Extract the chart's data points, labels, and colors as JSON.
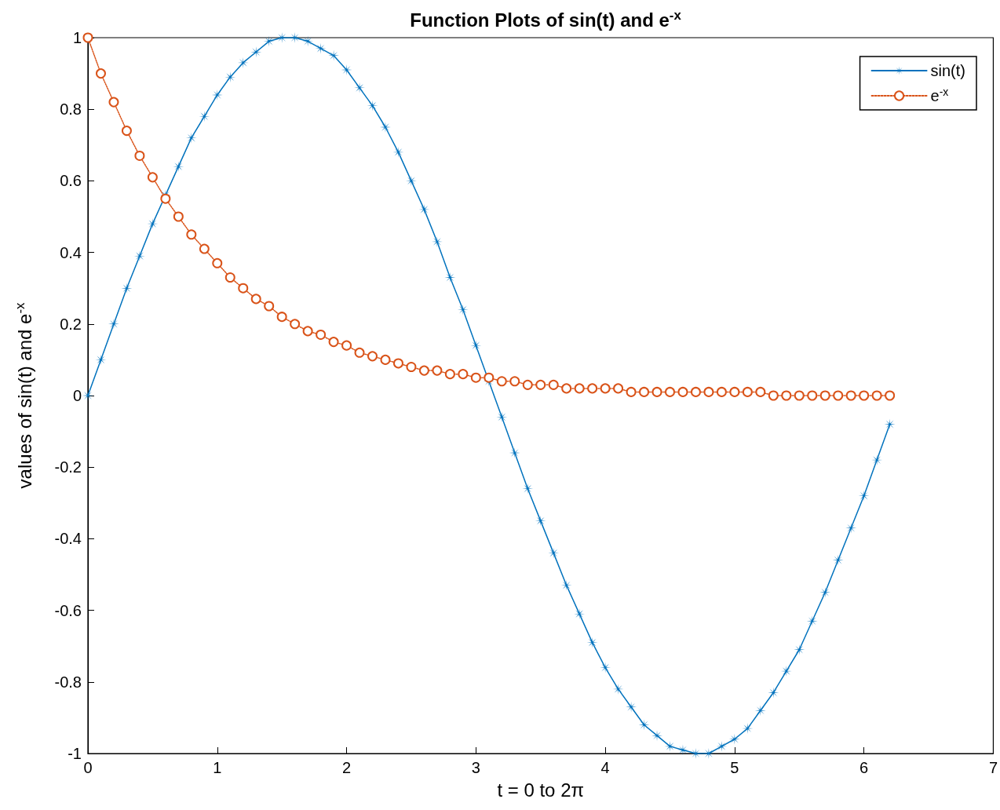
{
  "chart_data": {
    "type": "line",
    "title": "Function Plots of sin(t) and e$^{-x}$",
    "xlabel": "t = 0 to 2π",
    "ylabel": "values of sin(t) and e$^{-x}$",
    "x": [
      0,
      0.1,
      0.2,
      0.3,
      0.4,
      0.5,
      0.6,
      0.7,
      0.8,
      0.9,
      1,
      1.1,
      1.2,
      1.3,
      1.4,
      1.5,
      1.6,
      1.7,
      1.8,
      1.9,
      2,
      2.1,
      2.2,
      2.3,
      2.4,
      2.5,
      2.6,
      2.7,
      2.8,
      2.9,
      3,
      3.1,
      3.2,
      3.3,
      3.4,
      3.5,
      3.6,
      3.7,
      3.8,
      3.9,
      4,
      4.1,
      4.2,
      4.3,
      4.4,
      4.5,
      4.6,
      4.7,
      4.8,
      4.9,
      5,
      5.1,
      5.2,
      5.3,
      5.4,
      5.5,
      5.6,
      5.7,
      5.8,
      5.9,
      6,
      6.1,
      6.2
    ],
    "series": [
      {
        "name": "sin(t)",
        "color": "#0072bd",
        "marker": "star",
        "line_style": "solid",
        "values": [
          0,
          0.1,
          0.2,
          0.3,
          0.39,
          0.48,
          0.56,
          0.64,
          0.72,
          0.78,
          0.84,
          0.89,
          0.93,
          0.96,
          0.99,
          1,
          1,
          0.99,
          0.97,
          0.95,
          0.91,
          0.86,
          0.81,
          0.75,
          0.68,
          0.6,
          0.52,
          0.43,
          0.33,
          0.24,
          0.14,
          0.04,
          -0.06,
          -0.16,
          -0.26,
          -0.35,
          -0.44,
          -0.53,
          -0.61,
          -0.69,
          -0.76,
          -0.82,
          -0.87,
          -0.92,
          -0.95,
          -0.98,
          -0.99,
          -1,
          -1,
          -0.98,
          -0.96,
          -0.93,
          -0.88,
          -0.83,
          -0.77,
          -0.71,
          -0.63,
          -0.55,
          -0.46,
          -0.37,
          -0.28,
          -0.18,
          -0.08
        ]
      },
      {
        "name": "e$^{-x}$",
        "color": "#d95319",
        "marker": "circle",
        "line_style": "dotted",
        "values": [
          1,
          0.9,
          0.82,
          0.74,
          0.67,
          0.61,
          0.55,
          0.5,
          0.45,
          0.41,
          0.37,
          0.33,
          0.3,
          0.27,
          0.25,
          0.22,
          0.2,
          0.18,
          0.17,
          0.15,
          0.14,
          0.12,
          0.11,
          0.1,
          0.09,
          0.08,
          0.07,
          0.07,
          0.06,
          0.06,
          0.05,
          0.05,
          0.04,
          0.04,
          0.03,
          0.03,
          0.03,
          0.02,
          0.02,
          0.02,
          0.02,
          0.02,
          0.01,
          0.01,
          0.01,
          0.01,
          0.01,
          0.01,
          0.01,
          0.01,
          0.01,
          0.01,
          0.01,
          0,
          0,
          0,
          0,
          0,
          0,
          0,
          0,
          0,
          0
        ]
      }
    ],
    "xlim": [
      0,
      7
    ],
    "xticks": [
      0,
      1,
      2,
      3,
      4,
      5,
      6,
      7
    ],
    "ylim": [
      -1,
      1
    ],
    "yticks": [
      -1,
      -0.8,
      -0.6,
      -0.4,
      -0.2,
      0,
      0.2,
      0.4,
      0.6,
      0.8,
      1
    ],
    "grid": false,
    "legend": "top right"
  }
}
